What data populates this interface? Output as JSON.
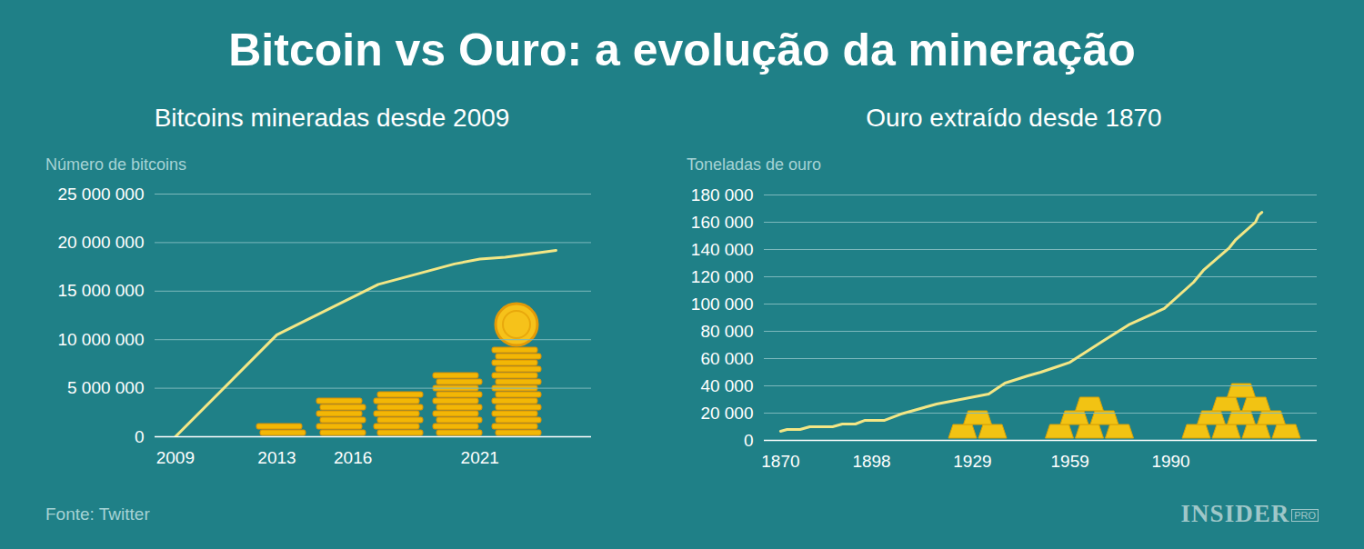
{
  "title": "Bitcoin vs Ouro: a evolução da mineração",
  "source": "Fonte: Twitter",
  "logo": {
    "name": "INSIDER",
    "tag": "PRO"
  },
  "chart_data": [
    {
      "type": "line",
      "title": "Bitcoins mineradas desde 2009",
      "ylabel": "Número de bitcoins",
      "x": [
        2009,
        2013,
        2017,
        2020,
        2021,
        2022,
        2024
      ],
      "values": [
        0,
        10500000,
        15700000,
        17800000,
        18300000,
        18500000,
        19200000
      ],
      "color": "#f3e685",
      "xlim": [
        2008.2,
        2025.4
      ],
      "ylim": [
        0,
        25000000
      ],
      "xticks": [
        2009,
        2013,
        2016,
        2021
      ],
      "yticks": [
        0,
        {
          "value": 5000000,
          "label": "5 000 000"
        },
        {
          "value": 10000000,
          "label": "10 000 000"
        },
        {
          "value": 15000000,
          "label": "15 000 000"
        },
        {
          "value": 20000000,
          "label": "20 000 000"
        },
        {
          "value": 25000000,
          "label": "25 000 000"
        }
      ],
      "grid": true
    },
    {
      "type": "line",
      "title": "Ouro extraído desde 1870",
      "ylabel": "Toneladas de ouro",
      "x": [
        1870,
        1872,
        1876,
        1879,
        1886,
        1889,
        1893,
        1896,
        1902,
        1907,
        1918,
        1934,
        1939,
        1946,
        1950,
        1955,
        1959,
        1969,
        1977,
        1988,
        1997,
        2000,
        2008,
        2010,
        2016,
        2017,
        2018
      ],
      "values": [
        6700,
        8000,
        8000,
        10000,
        10000,
        12000,
        12000,
        14700,
        14700,
        19300,
        26700,
        34000,
        42000,
        47300,
        50000,
        54000,
        57300,
        72700,
        84700,
        96700,
        116000,
        124700,
        141300,
        147300,
        160000,
        165300,
        167300
      ],
      "color": "#f3e685",
      "xlim": [
        1865,
        2035
      ],
      "ylim": [
        0,
        180000
      ],
      "xticks": [
        1870,
        1898,
        1929,
        1959,
        1990
      ],
      "yticks": [
        0,
        {
          "value": 20000,
          "label": "20 000"
        },
        {
          "value": 40000,
          "label": "40 000"
        },
        {
          "value": 60000,
          "label": "60 000"
        },
        {
          "value": 80000,
          "label": "80 000"
        },
        {
          "value": 100000,
          "label": "100 000"
        },
        {
          "value": 120000,
          "label": "120 000"
        },
        {
          "value": 140000,
          "label": "140 000"
        },
        {
          "value": 160000,
          "label": "160 000"
        },
        {
          "value": 180000,
          "label": "180 000"
        }
      ],
      "grid": true
    }
  ]
}
